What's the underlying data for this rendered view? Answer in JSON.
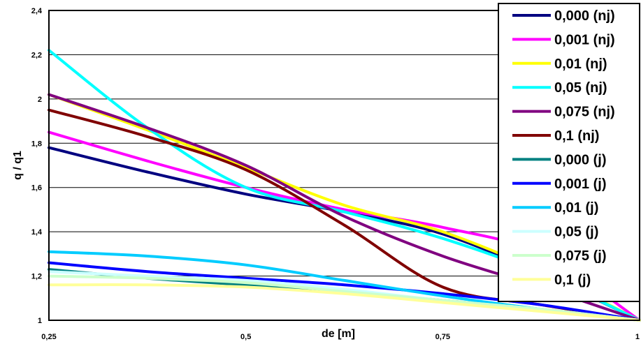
{
  "chart_data": {
    "type": "line",
    "xlabel": "de [m]",
    "ylabel": "q / q1",
    "xlim": [
      0.25,
      1
    ],
    "ylim": [
      1,
      2.4
    ],
    "x_ticks": [
      0.25,
      0.5,
      0.75,
      1
    ],
    "x_tick_labels": [
      "0,25",
      "0,5",
      "0,75",
      "1"
    ],
    "y_ticks": [
      1,
      1.2,
      1.4,
      1.6,
      1.8,
      2,
      2.2,
      2.4
    ],
    "y_tick_labels": [
      "1",
      "1,2",
      "1,4",
      "1,6",
      "1,8",
      "2",
      "2,2",
      "2,4"
    ],
    "grid": "horizontal",
    "legend_position": "right",
    "x": [
      0.25,
      0.375,
      0.5,
      0.625,
      0.75,
      0.875,
      1
    ],
    "series": [
      {
        "name": "0,000 (nj)",
        "color": "#000080",
        "values": [
          1.78,
          1.67,
          1.57,
          1.49,
          1.39,
          1.21,
          1.0
        ]
      },
      {
        "name": "0,001 (nj)",
        "color": "#FF00FF",
        "values": [
          1.85,
          1.72,
          1.6,
          1.5,
          1.42,
          1.3,
          1.0
        ]
      },
      {
        "name": "0,01 (nj)",
        "color": "#FFFF00",
        "values": [
          2.02,
          1.86,
          1.69,
          1.52,
          1.4,
          1.22,
          1.0
        ]
      },
      {
        "name": "0,05 (nj)",
        "color": "#00FFFF",
        "values": [
          2.22,
          1.87,
          1.6,
          1.49,
          1.37,
          1.21,
          1.0
        ]
      },
      {
        "name": "0,075 (nj)",
        "color": "#800080",
        "values": [
          2.02,
          1.87,
          1.7,
          1.47,
          1.29,
          1.15,
          1.0
        ]
      },
      {
        "name": "0,1 (nj)",
        "color": "#800000",
        "values": [
          1.95,
          1.83,
          1.68,
          1.43,
          1.15,
          1.07,
          1.0
        ]
      },
      {
        "name": "0,000 (j)",
        "color": "#008080",
        "values": [
          1.23,
          1.19,
          1.16,
          1.13,
          1.09,
          1.05,
          1.0
        ]
      },
      {
        "name": "0,001 (j)",
        "color": "#0000FF",
        "values": [
          1.26,
          1.22,
          1.19,
          1.16,
          1.12,
          1.07,
          1.0
        ]
      },
      {
        "name": "0,01 (j)",
        "color": "#00CCFF",
        "values": [
          1.31,
          1.29,
          1.25,
          1.18,
          1.11,
          1.05,
          1.0
        ]
      },
      {
        "name": "0,05 (j)",
        "color": "#CCFFFF",
        "values": [
          1.22,
          1.2,
          1.18,
          1.14,
          1.09,
          1.05,
          1.0
        ]
      },
      {
        "name": "0,075 (j)",
        "color": "#CCFFCC",
        "values": [
          1.2,
          1.19,
          1.17,
          1.13,
          1.09,
          1.05,
          1.0
        ]
      },
      {
        "name": "0,1 (j)",
        "color": "#FFFF99",
        "values": [
          1.16,
          1.16,
          1.15,
          1.12,
          1.08,
          1.04,
          1.0
        ]
      }
    ]
  }
}
